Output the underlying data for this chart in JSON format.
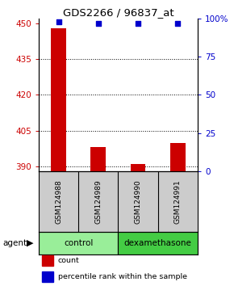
{
  "title": "GDS2266 / 96837_at",
  "samples": [
    "GSM124988",
    "GSM124989",
    "GSM124990",
    "GSM124991"
  ],
  "count_values": [
    448,
    398,
    391,
    400
  ],
  "percentile_values": [
    98,
    97,
    97,
    97
  ],
  "ylim_left": [
    388,
    452
  ],
  "ylim_right": [
    0,
    100
  ],
  "yticks_left": [
    390,
    405,
    420,
    435,
    450
  ],
  "yticks_right": [
    0,
    25,
    50,
    75,
    100
  ],
  "bar_color": "#cc0000",
  "dot_color": "#0000cc",
  "groups": [
    {
      "label": "control",
      "indices": [
        0,
        1
      ],
      "color": "#99ee99"
    },
    {
      "label": "dexamethasone",
      "indices": [
        2,
        3
      ],
      "color": "#44cc44"
    }
  ],
  "agent_label": "agent",
  "legend_items": [
    {
      "label": "count",
      "color": "#cc0000"
    },
    {
      "label": "percentile rank within the sample",
      "color": "#0000cc"
    }
  ],
  "sample_box_color": "#cccccc",
  "plot_bg": "#ffffff"
}
